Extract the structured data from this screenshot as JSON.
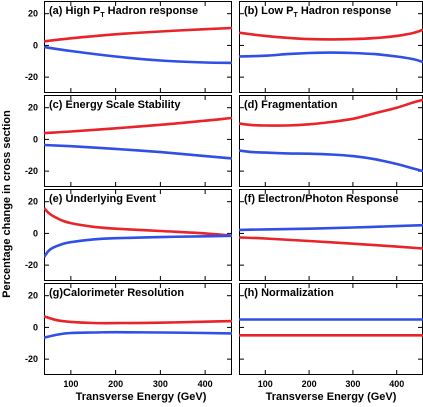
{
  "figure": {
    "ylabel": "Percentage change in cross section",
    "xlabel": "Transverse Energy (GeV)"
  },
  "colors": {
    "up": "#e8232a",
    "down": "#2f4fe6"
  },
  "chart_data": [
    {
      "type": "line",
      "panel_id": "a",
      "title_pre": "(a) High P",
      "title_sub": "T",
      "title_post": " Hadron response",
      "x": [
        40,
        100,
        200,
        300,
        400,
        460
      ],
      "xlim": [
        40,
        460
      ],
      "ylim": [
        -30,
        28
      ],
      "xticks": [
        100,
        200,
        300,
        400
      ],
      "yticks": [
        -20,
        0,
        20
      ],
      "series": [
        {
          "color": "red",
          "values": [
            2.5,
            4.5,
            7.0,
            8.8,
            10.2,
            11.0
          ]
        },
        {
          "color": "blue",
          "values": [
            -1.0,
            -3.5,
            -7.0,
            -9.5,
            -10.8,
            -11.0
          ]
        }
      ]
    },
    {
      "type": "line",
      "panel_id": "b",
      "title_pre": "(b) Low P",
      "title_sub": "T",
      "title_post": " Hadron response",
      "x": [
        40,
        100,
        150,
        200,
        250,
        300,
        350,
        400,
        440,
        460
      ],
      "xlim": [
        40,
        460
      ],
      "ylim": [
        -30,
        28
      ],
      "xticks": [
        100,
        200,
        300,
        400
      ],
      "yticks": [
        -20,
        0,
        20
      ],
      "series": [
        {
          "color": "red",
          "values": [
            8.0,
            6.0,
            4.8,
            4.0,
            3.8,
            4.0,
            4.6,
            6.0,
            8.0,
            10.0
          ]
        },
        {
          "color": "blue",
          "values": [
            -7.0,
            -6.5,
            -5.5,
            -4.8,
            -4.5,
            -4.8,
            -5.5,
            -7.0,
            -8.8,
            -10.5
          ]
        }
      ]
    },
    {
      "type": "line",
      "panel_id": "c",
      "title": "(c) Energy Scale Stability",
      "x": [
        40,
        100,
        200,
        300,
        400,
        460
      ],
      "xlim": [
        40,
        460
      ],
      "ylim": [
        -30,
        28
      ],
      "xticks": [
        100,
        200,
        300,
        400
      ],
      "yticks": [
        -20,
        0,
        20
      ],
      "series": [
        {
          "color": "red",
          "values": [
            4.0,
            5.0,
            7.0,
            9.2,
            11.8,
            13.5
          ]
        },
        {
          "color": "blue",
          "values": [
            -3.5,
            -4.3,
            -6.0,
            -8.0,
            -10.5,
            -12.0
          ]
        }
      ]
    },
    {
      "type": "line",
      "panel_id": "d",
      "title": "(d) Fragmentation",
      "x": [
        40,
        70,
        100,
        150,
        200,
        250,
        300,
        350,
        400,
        440,
        460
      ],
      "xlim": [
        40,
        460
      ],
      "ylim": [
        -30,
        28
      ],
      "xticks": [
        100,
        200,
        300,
        400
      ],
      "yticks": [
        -20,
        0,
        20
      ],
      "series": [
        {
          "color": "red",
          "values": [
            10.0,
            9.0,
            8.8,
            8.8,
            9.5,
            11.0,
            13.0,
            16.5,
            20.0,
            23.5,
            25.0
          ]
        },
        {
          "color": "blue",
          "values": [
            -7.0,
            -8.0,
            -8.3,
            -8.8,
            -9.0,
            -9.5,
            -10.5,
            -12.5,
            -15.5,
            -18.5,
            -20.0
          ]
        }
      ]
    },
    {
      "type": "line",
      "panel_id": "e",
      "title": "(e) Underlying Event",
      "x": [
        40,
        50,
        60,
        80,
        100,
        150,
        200,
        300,
        400,
        460
      ],
      "xlim": [
        40,
        460
      ],
      "ylim": [
        -30,
        28
      ],
      "xticks": [
        100,
        200,
        300,
        400
      ],
      "yticks": [
        -20,
        0,
        20
      ],
      "series": [
        {
          "color": "red",
          "values": [
            16.0,
            13.0,
            11.0,
            8.2,
            6.5,
            4.2,
            3.0,
            1.5,
            0.0,
            -1.5
          ]
        },
        {
          "color": "blue",
          "values": [
            -15.0,
            -11.0,
            -9.0,
            -6.8,
            -5.5,
            -3.8,
            -3.0,
            -2.3,
            -1.8,
            -1.5
          ]
        }
      ]
    },
    {
      "type": "line",
      "panel_id": "f",
      "title": "(f) Electron/Photon Response",
      "x": [
        40,
        100,
        200,
        300,
        400,
        460
      ],
      "xlim": [
        40,
        460
      ],
      "ylim": [
        -30,
        28
      ],
      "xticks": [
        100,
        200,
        300,
        400
      ],
      "yticks": [
        -20,
        0,
        20
      ],
      "series": [
        {
          "color": "red",
          "values": [
            -2.5,
            -3.2,
            -4.8,
            -6.5,
            -8.3,
            -9.5
          ]
        },
        {
          "color": "blue",
          "values": [
            2.2,
            2.5,
            3.0,
            3.7,
            4.6,
            5.2
          ]
        }
      ]
    },
    {
      "type": "line",
      "panel_id": "g",
      "title": "(g)Calorimeter Resolution",
      "x": [
        40,
        70,
        100,
        150,
        200,
        300,
        400,
        460
      ],
      "xlim": [
        40,
        460
      ],
      "ylim": [
        -30,
        28
      ],
      "xticks": [
        100,
        200,
        300,
        400
      ],
      "yticks": [
        -20,
        0,
        20
      ],
      "series": [
        {
          "color": "red",
          "values": [
            7.0,
            4.5,
            3.5,
            2.8,
            2.7,
            3.0,
            3.6,
            4.0
          ]
        },
        {
          "color": "blue",
          "values": [
            -6.5,
            -4.5,
            -3.5,
            -3.2,
            -3.0,
            -3.2,
            -3.5,
            -3.8
          ]
        }
      ]
    },
    {
      "type": "line",
      "panel_id": "h",
      "title": "(h) Normalization",
      "x": [
        40,
        460
      ],
      "xlim": [
        40,
        460
      ],
      "ylim": [
        -30,
        28
      ],
      "xticks": [
        100,
        200,
        300,
        400
      ],
      "yticks": [
        -20,
        0,
        20
      ],
      "series": [
        {
          "color": "red",
          "values": [
            -5.0,
            -5.0
          ]
        },
        {
          "color": "blue",
          "values": [
            5.0,
            5.0
          ]
        }
      ]
    }
  ]
}
